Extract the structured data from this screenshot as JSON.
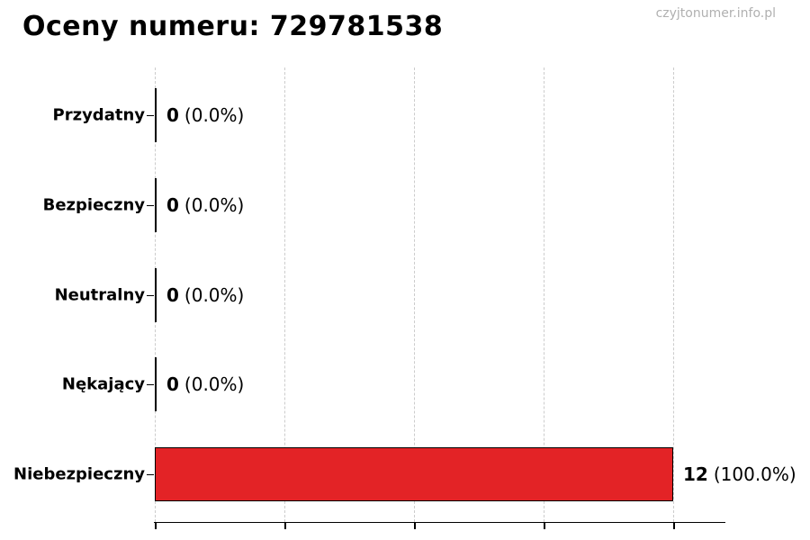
{
  "page": {
    "title": "Oceny numeru: 729781538",
    "watermark": "czyjtonumer.info.pl"
  },
  "colors": {
    "bar_fill": "#e32326",
    "bar_edge": "#000000",
    "gridline": "#cccccc",
    "axis": "#000000",
    "watermark_text": "#b0b0b0",
    "title_text": "#000000"
  },
  "chart_data": {
    "type": "bar",
    "orientation": "horizontal",
    "title": "Oceny numeru: 729781538",
    "categories": [
      "Przydatny",
      "Bezpieczny",
      "Neutralny",
      "Nękający",
      "Niebezpieczny"
    ],
    "values": [
      0,
      0,
      0,
      0,
      12
    ],
    "total_votes": 12,
    "value_display": [
      {
        "count": "0",
        "pct": "(0.0%)"
      },
      {
        "count": "0",
        "pct": "(0.0%)"
      },
      {
        "count": "0",
        "pct": "(0.0%)"
      },
      {
        "count": "0",
        "pct": "(0.0%)"
      },
      {
        "count": "12",
        "pct": "(100.0%)"
      }
    ],
    "xlim": [
      0,
      12
    ],
    "xticks": [
      0,
      3,
      6,
      9,
      12
    ],
    "xtick_labels_visible": false,
    "grid": true,
    "legend": false
  }
}
